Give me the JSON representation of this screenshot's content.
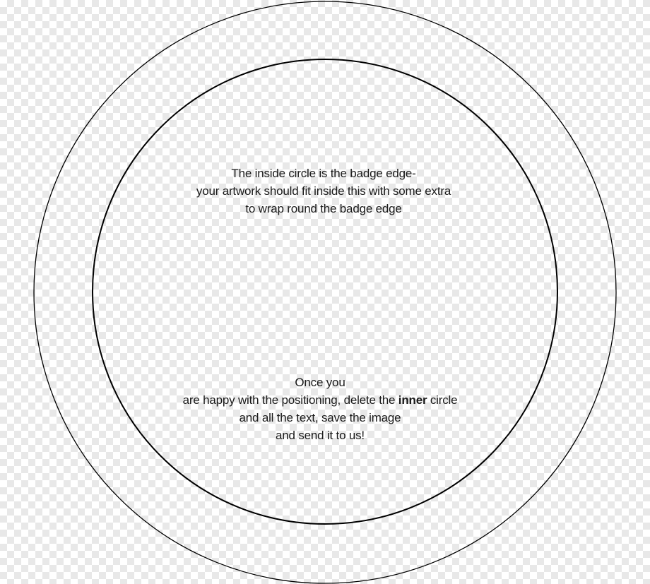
{
  "instructions_top": {
    "line1": "The inside circle is the badge edge-",
    "line2": "your artwork should fit inside this with some extra",
    "line3": "to wrap round the badge edge"
  },
  "instructions_bottom": {
    "line1": "Once you",
    "line2_before": "are happy with the positioning, delete the ",
    "line2_bold": "inner",
    "line2_after": " circle",
    "line3": "and all the text, save the image",
    "line4": "and send it to us!"
  },
  "colors": {
    "stroke": "#000000",
    "text": "#1a1a1a",
    "checker_light": "#ffffff",
    "checker_dark": "#e8e8e8"
  }
}
